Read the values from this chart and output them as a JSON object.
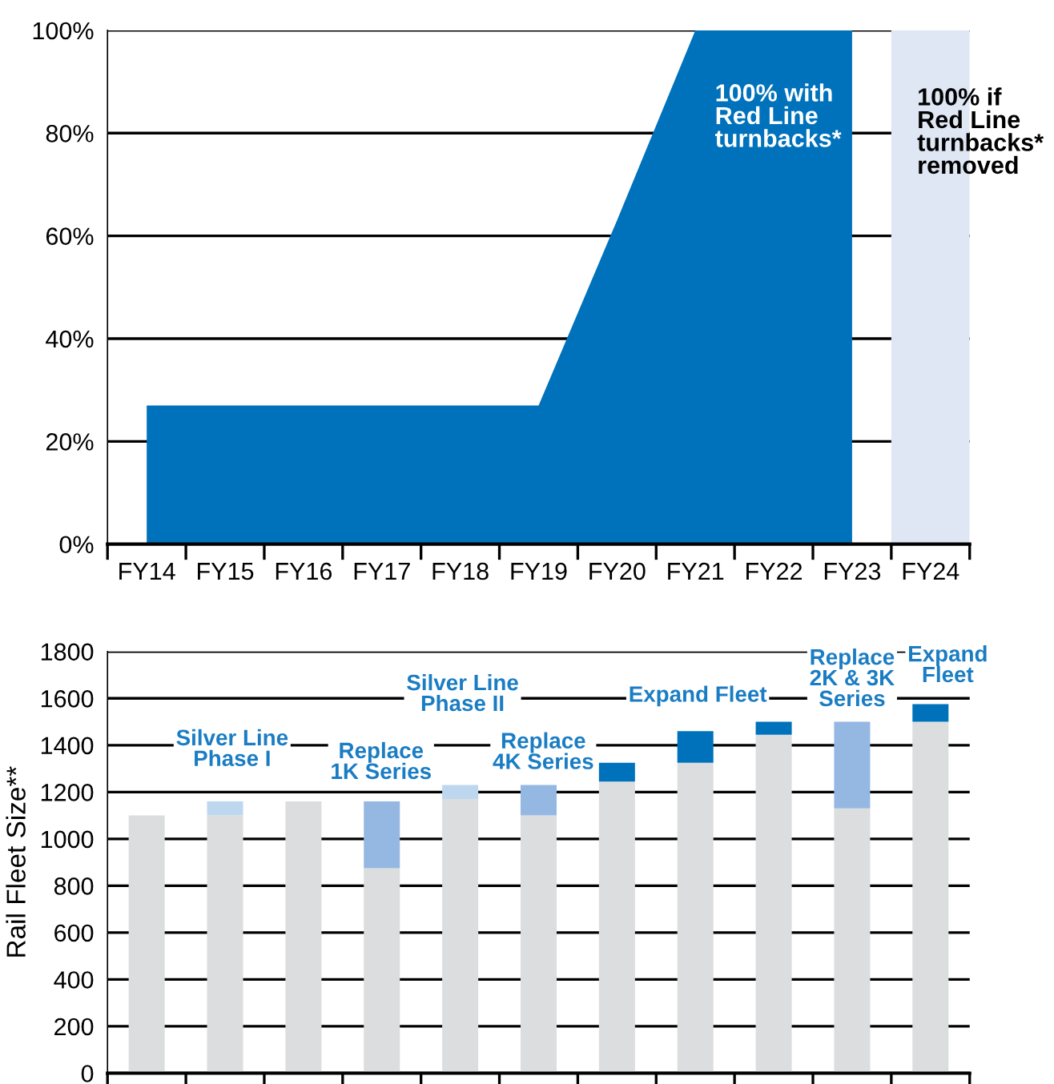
{
  "chart_data": [
    {
      "type": "area",
      "categories": [
        "FY14",
        "FY15",
        "FY16",
        "FY17",
        "FY18",
        "FY19",
        "FY20",
        "FY21",
        "FY22",
        "FY23",
        "FY24"
      ],
      "series": [
        {
          "type": "area",
          "color": "#0072bc",
          "values": [
            27,
            27,
            27,
            27,
            27,
            27,
            63,
            100,
            100,
            100,
            null
          ]
        },
        {
          "type": "bar",
          "color": "#dfe6f4",
          "values": [
            null,
            null,
            null,
            null,
            null,
            null,
            null,
            null,
            null,
            null,
            100
          ]
        }
      ],
      "ylim": [
        0,
        100
      ],
      "yticks": [
        {
          "value": 0,
          "label": "0%"
        },
        {
          "value": 20,
          "label": "20%"
        },
        {
          "value": 40,
          "label": "40%"
        },
        {
          "value": 60,
          "label": "60%"
        },
        {
          "value": 80,
          "label": "80%"
        },
        {
          "value": 100,
          "label": "100%"
        }
      ],
      "grid": "y",
      "annotations": [
        "100% with\nRed Line\nturnbacks*",
        "100% if\nRed Line\nturnbacks*\nremoved"
      ]
    },
    {
      "type": "bar",
      "stacked": true,
      "categories": [
        null,
        null,
        null,
        null,
        null,
        null,
        null,
        null,
        null,
        null,
        null
      ],
      "series": [
        {
          "color": "#dcdddf",
          "values": [
            1100,
            1100,
            1160,
            875,
            1170,
            1100,
            1245,
            1325,
            1445,
            1130,
            1500
          ]
        },
        {
          "color": "#bdd7ee",
          "values": [
            null,
            60,
            null,
            null,
            60,
            null,
            null,
            null,
            null,
            null,
            null
          ]
        },
        {
          "color": "#95b8e3",
          "values": [
            null,
            null,
            null,
            285,
            null,
            130,
            null,
            null,
            null,
            370,
            null
          ]
        },
        {
          "color": "#0072bc",
          "values": [
            null,
            null,
            null,
            null,
            null,
            null,
            80,
            135,
            55,
            null,
            75
          ]
        }
      ],
      "ylim": [
        0,
        1800
      ],
      "yticks": [
        0,
        200,
        400,
        600,
        800,
        1000,
        1200,
        1400,
        1600,
        1800
      ],
      "ylabel": "Rail Fleet Size**",
      "grid": "y",
      "annotations": [
        "Silver Line\nPhase I",
        "Replace\n1K Series",
        "Silver Line\nPhase II",
        "Replace\n4K Series",
        "Expand Fleet",
        "Replace\n2K & 3K\nSeries",
        "Expand\nFleet"
      ]
    }
  ]
}
